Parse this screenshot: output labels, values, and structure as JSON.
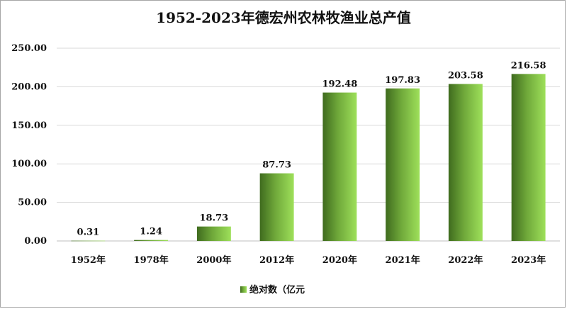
{
  "chart_data": {
    "type": "bar",
    "title": "1952-2023年德宏州农林牧渔业总产值",
    "categories": [
      "1952年",
      "1978年",
      "2000年",
      "2012年",
      "2020年",
      "2021年",
      "2022年",
      "2023年"
    ],
    "series": [
      {
        "name": "绝对数（亿元",
        "values": [
          0.31,
          1.24,
          18.73,
          87.73,
          192.48,
          197.83,
          203.58,
          216.58
        ],
        "labels": [
          "0.31",
          "1.24",
          "18.73",
          "87.73",
          "192.48",
          "197.83",
          "203.58",
          "216.58"
        ]
      }
    ],
    "y_ticks": [
      "0.00",
      "50.00",
      "100.00",
      "150.00",
      "200.00",
      "250.00"
    ],
    "ylim": [
      0,
      250
    ],
    "grid": true,
    "legend": "bottom",
    "colors": {
      "bar_light": "#92d050",
      "bar_dark": "#4f7a28",
      "grid": "#d9d9d9"
    }
  }
}
